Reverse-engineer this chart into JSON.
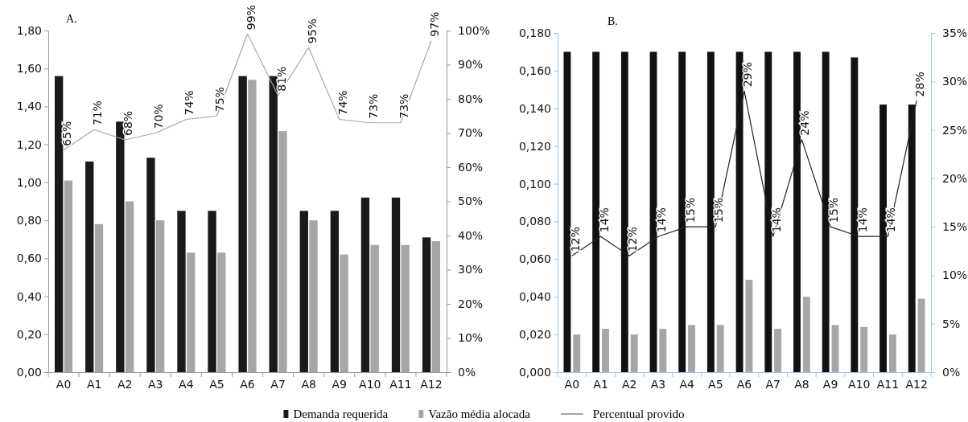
{
  "chart_data": [
    {
      "type": "bar",
      "title": "A.",
      "categories": [
        "A0",
        "A1",
        "A2",
        "A3",
        "A4",
        "A5",
        "A6",
        "A7",
        "A8",
        "A9",
        "A10",
        "A11",
        "A12"
      ],
      "series": [
        {
          "name": "Demanda requerida",
          "color": "#1a1a1a",
          "values": [
            1.56,
            1.11,
            1.32,
            1.13,
            0.85,
            0.85,
            1.56,
            1.56,
            0.85,
            0.85,
            0.92,
            0.92,
            0.71
          ]
        },
        {
          "name": "Vazão média alocada",
          "color": "#a6a6a6",
          "values": [
            1.01,
            0.78,
            0.9,
            0.8,
            0.63,
            0.63,
            1.54,
            1.27,
            0.8,
            0.62,
            0.67,
            0.67,
            0.69
          ]
        },
        {
          "name": "Percentual provido",
          "type": "line",
          "axis": "y2",
          "color": "#a6a6a6",
          "values": [
            65,
            71,
            68,
            70,
            74,
            75,
            99,
            81,
            95,
            74,
            73,
            73,
            97
          ],
          "value_labels": [
            "65%",
            "71%",
            "68%",
            "70%",
            "74%",
            "75%",
            "99%",
            "81%",
            "95%",
            "74%",
            "73%",
            "73%",
            "97%"
          ]
        }
      ],
      "ylim": [
        0,
        1.8
      ],
      "yticks": [
        {
          "value": 0,
          "label": "0,00"
        },
        {
          "value": 0.2,
          "label": "0,20"
        },
        {
          "value": 0.4,
          "label": "0,40"
        },
        {
          "value": 0.6,
          "label": "0,60"
        },
        {
          "value": 0.8,
          "label": "0,80"
        },
        {
          "value": 1,
          "label": "1,00"
        },
        {
          "value": 1.2,
          "label": "1,20"
        },
        {
          "value": 1.4,
          "label": "1,40"
        },
        {
          "value": 1.6,
          "label": "1,60"
        },
        {
          "value": 1.8,
          "label": "1,80"
        }
      ],
      "y2lim": [
        0,
        100
      ],
      "y2ticks": [
        {
          "value": 0,
          "label": "0%"
        },
        {
          "value": 10,
          "label": "10%"
        },
        {
          "value": 20,
          "label": "20%"
        },
        {
          "value": 30,
          "label": "30%"
        },
        {
          "value": 40,
          "label": "40%"
        },
        {
          "value": 50,
          "label": "50%"
        },
        {
          "value": 60,
          "label": "60%"
        },
        {
          "value": 70,
          "label": "70%"
        },
        {
          "value": 80,
          "label": "80%"
        },
        {
          "value": 90,
          "label": "90%"
        },
        {
          "value": 100,
          "label": "100%"
        }
      ],
      "legend": "bottom",
      "grid": false,
      "marker": "none"
    },
    {
      "type": "bar",
      "title": "B.",
      "categories": [
        "A0",
        "A1",
        "A2",
        "A3",
        "A4",
        "A5",
        "A6",
        "A7",
        "A8",
        "A9",
        "A10",
        "A11",
        "A12"
      ],
      "series": [
        {
          "color": "#111111",
          "values": [
            0.17,
            0.17,
            0.17,
            0.17,
            0.17,
            0.17,
            0.17,
            0.17,
            0.17,
            0.17,
            0.167,
            0.142,
            0.142
          ]
        },
        {
          "color": "#a6a6a6",
          "values": [
            0.02,
            0.023,
            0.02,
            0.023,
            0.025,
            0.025,
            0.049,
            0.023,
            0.04,
            0.025,
            0.024,
            0.02,
            0.039
          ]
        },
        {
          "type": "line",
          "axis": "y2",
          "color": "#222222",
          "values": [
            12,
            14,
            12,
            14,
            15,
            15,
            29,
            14,
            24,
            15,
            14,
            14,
            28
          ],
          "value_labels": [
            "12%",
            "14%",
            "12%",
            "14%",
            "15%",
            "15%",
            "29%",
            "14%",
            "24%",
            "15%",
            "14%",
            "14%",
            "28%"
          ]
        }
      ],
      "ylim": [
        0,
        0.18
      ],
      "yticks": [
        {
          "value": 0,
          "label": "0,000"
        },
        {
          "value": 0.02,
          "label": "0,020"
        },
        {
          "value": 0.04,
          "label": "0,040"
        },
        {
          "value": 0.06,
          "label": "0,060"
        },
        {
          "value": 0.08,
          "label": "0,080"
        },
        {
          "value": 0.1,
          "label": "0,100"
        },
        {
          "value": 0.12,
          "label": "0,120"
        },
        {
          "value": 0.14,
          "label": "0,140"
        },
        {
          "value": 0.16,
          "label": "0,160"
        },
        {
          "value": 0.18,
          "label": "0,180"
        }
      ],
      "y2lim": [
        0,
        35
      ],
      "y2ticks": [
        {
          "value": 0,
          "label": "0%"
        },
        {
          "value": 5,
          "label": "5%"
        },
        {
          "value": 10,
          "label": "10%"
        },
        {
          "value": 15,
          "label": "15%"
        },
        {
          "value": 20,
          "label": "20%"
        },
        {
          "value": 25,
          "label": "25%"
        },
        {
          "value": 30,
          "label": "30%"
        },
        {
          "value": 35,
          "label": "35%"
        }
      ],
      "grid": false,
      "marker": "none"
    }
  ]
}
